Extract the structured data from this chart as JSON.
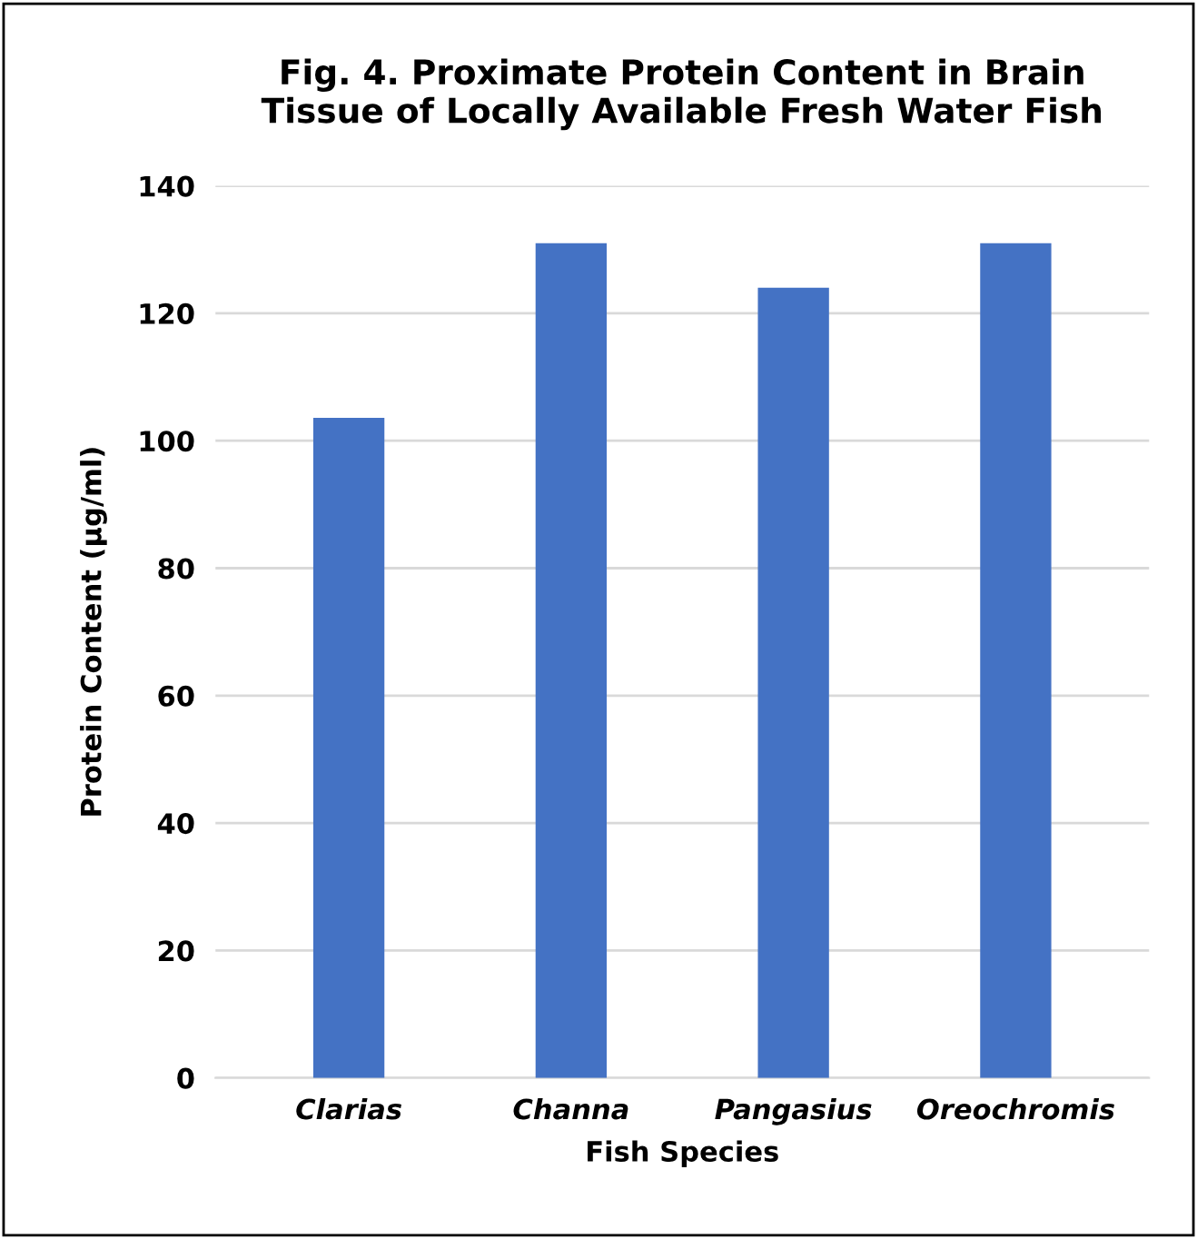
{
  "chart_data": {
    "type": "bar",
    "title": "Fig. 4. Proximate Protein Content in Brain\nTissue of Locally Available Fresh Water Fish",
    "xlabel": "Fish Species",
    "ylabel": "Protein Content (µg/ml)",
    "categories": [
      "Clarias",
      "Channa",
      "Pangasius",
      "Oreochromis"
    ],
    "values": [
      103.6,
      131,
      124,
      131
    ],
    "color": "#4472c4",
    "ylim": [
      0,
      140
    ],
    "yticks": [
      0,
      20,
      40,
      60,
      80,
      100,
      120,
      140
    ],
    "grid": "y"
  }
}
